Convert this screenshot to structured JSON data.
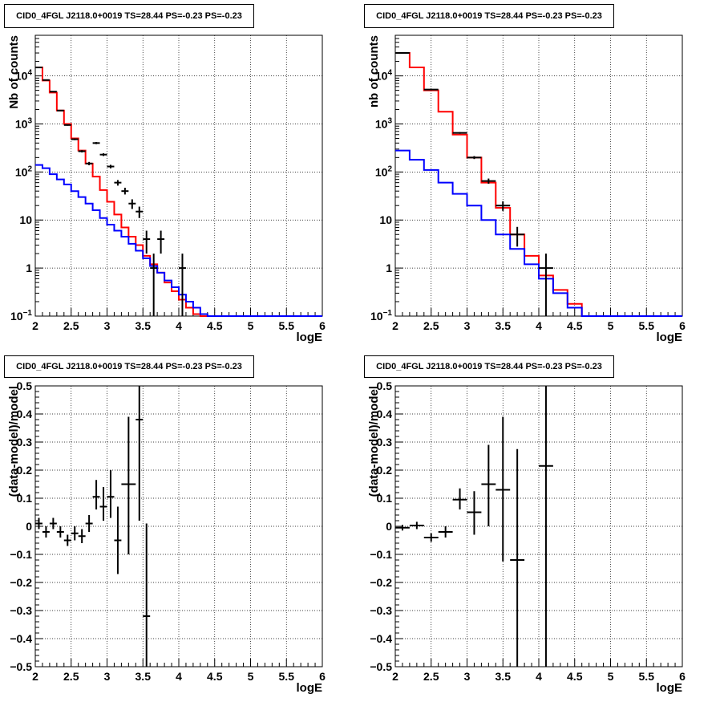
{
  "chart_data": [
    {
      "type": "line",
      "title": "CID0_4FGL J2118.0+0019 TS=28.44 PS=-0.23 PS=-0.23",
      "xlabel": "logE",
      "ylabel": "Nb of counts",
      "xlim": [
        2,
        6
      ],
      "ylim": [
        0.1,
        70000
      ],
      "yscale": "log",
      "grid": true,
      "x_ticks": [
        "2",
        "2.5",
        "3",
        "3.5",
        "4",
        "4.5",
        "5",
        "5.5",
        "6"
      ],
      "y_ticks": [
        "10^-1",
        "1",
        "10",
        "10^2",
        "10^3",
        "10^4"
      ],
      "bin_edges": [
        2.0,
        2.1,
        2.2,
        2.3,
        2.4,
        2.5,
        2.6,
        2.7,
        2.8,
        2.9,
        3.0,
        3.1,
        3.2,
        3.3,
        3.4,
        3.5,
        3.6,
        3.7,
        3.8,
        3.9,
        4.0,
        4.1,
        4.2,
        4.3,
        4.4,
        4.5,
        4.6,
        4.7,
        4.8,
        4.9,
        5.0,
        5.1,
        5.2,
        5.3,
        5.4,
        5.5,
        5.6,
        5.7,
        5.8,
        5.9,
        6.0
      ],
      "series": [
        {
          "name": "model (red)",
          "color": "#ff0000",
          "values": [
            15000,
            8000,
            4500,
            1900,
            1000,
            500,
            280,
            150,
            80,
            42,
            24,
            13,
            7,
            4.5,
            3,
            1.8,
            1.2,
            0.8,
            0.5,
            0.33,
            0.22,
            0.15,
            0.11,
            0.1,
            0.1,
            0.1,
            0.1,
            0.1,
            0.1,
            0.1,
            0.1,
            0.1,
            0.1,
            0.1,
            0.1,
            0.1,
            0.1,
            0.1,
            0.1,
            0.1
          ]
        },
        {
          "name": "component (blue)",
          "color": "#0000ff",
          "values": [
            140,
            120,
            90,
            70,
            55,
            40,
            30,
            22,
            16,
            11,
            8,
            6,
            4.5,
            3.2,
            2.3,
            1.6,
            1.1,
            0.8,
            0.55,
            0.4,
            0.28,
            0.2,
            0.15,
            0.11,
            0.1,
            0.1,
            0.1,
            0.1,
            0.1,
            0.1,
            0.1,
            0.1,
            0.1,
            0.1,
            0.1,
            0.1,
            0.1,
            0.1,
            0.1,
            0.1
          ]
        }
      ],
      "points": [
        {
          "x": 2.05,
          "y": 15000,
          "ylo": 14880,
          "yhi": 15120
        },
        {
          "x": 2.15,
          "y": 8200,
          "ylo": 8110,
          "yhi": 8290
        },
        {
          "x": 2.25,
          "y": 4700,
          "ylo": 4630,
          "yhi": 4770
        },
        {
          "x": 2.35,
          "y": 1900,
          "ylo": 1860,
          "yhi": 1940
        },
        {
          "x": 2.45,
          "y": 950,
          "ylo": 920,
          "yhi": 980
        },
        {
          "x": 2.55,
          "y": 480,
          "ylo": 460,
          "yhi": 500
        },
        {
          "x": 2.65,
          "y": 270,
          "ylo": 255,
          "yhi": 285
        },
        {
          "x": 2.75,
          "y": 150,
          "ylo": 138,
          "yhi": 162
        },
        {
          "x": 2.85,
          "y": 400,
          "ylo": 380,
          "yhi": 420
        },
        {
          "x": 2.95,
          "y": 230,
          "ylo": 215,
          "yhi": 245
        },
        {
          "x": 3.05,
          "y": 130,
          "ylo": 119,
          "yhi": 141
        },
        {
          "x": 3.15,
          "y": 60,
          "ylo": 52,
          "yhi": 68
        },
        {
          "x": 3.25,
          "y": 40,
          "ylo": 34,
          "yhi": 47
        },
        {
          "x": 3.35,
          "y": 22,
          "ylo": 17,
          "yhi": 27
        },
        {
          "x": 3.45,
          "y": 15,
          "ylo": 11,
          "yhi": 19
        },
        {
          "x": 3.55,
          "y": 4,
          "ylo": 2,
          "yhi": 6
        },
        {
          "x": 3.65,
          "y": 1,
          "ylo": 0.1,
          "yhi": 2
        },
        {
          "x": 3.75,
          "y": 4,
          "ylo": 2,
          "yhi": 6
        },
        {
          "x": 4.05,
          "y": 1,
          "ylo": 0.1,
          "yhi": 2
        }
      ]
    },
    {
      "type": "line",
      "title": "CID0_4FGL J2118.0+0019 TS=28.44 PS=-0.23 PS=-0.23",
      "xlabel": "logE",
      "ylabel": "nb of counts",
      "xlim": [
        2,
        6
      ],
      "ylim": [
        0.1,
        70000
      ],
      "yscale": "log",
      "grid": true,
      "x_ticks": [
        "2",
        "2.5",
        "3",
        "3.5",
        "4",
        "4.5",
        "5",
        "5.5",
        "6"
      ],
      "y_ticks": [
        "10^-1",
        "1",
        "10",
        "10^2",
        "10^3",
        "10^4"
      ],
      "bin_edges": [
        2.0,
        2.2,
        2.4,
        2.6,
        2.8,
        3.0,
        3.2,
        3.4,
        3.6,
        3.8,
        4.0,
        4.2,
        4.4,
        4.6,
        4.8,
        5.0,
        5.2,
        5.4,
        5.6,
        5.8,
        6.0
      ],
      "series": [
        {
          "name": "model (red)",
          "color": "#ff0000",
          "values": [
            30000,
            15000,
            5000,
            1800,
            600,
            200,
            60,
            18,
            5,
            1.8,
            0.7,
            0.35,
            0.18,
            0.1,
            0.1,
            0.1,
            0.1,
            0.1,
            0.1,
            0.1
          ]
        },
        {
          "name": "component (blue)",
          "color": "#0000ff",
          "values": [
            280,
            180,
            110,
            60,
            35,
            20,
            10,
            5,
            2.5,
            1.2,
            0.6,
            0.3,
            0.15,
            0.1,
            0.1,
            0.1,
            0.1,
            0.1,
            0.1,
            0.1
          ]
        }
      ],
      "points": [
        {
          "x": 2.1,
          "y": 30000,
          "ylo": 29830,
          "yhi": 30170
        },
        {
          "x": 2.5,
          "y": 5200,
          "ylo": 5130,
          "yhi": 5270
        },
        {
          "x": 2.9,
          "y": 650,
          "ylo": 625,
          "yhi": 675
        },
        {
          "x": 3.1,
          "y": 200,
          "ylo": 186,
          "yhi": 214
        },
        {
          "x": 3.3,
          "y": 65,
          "ylo": 57,
          "yhi": 73
        },
        {
          "x": 3.5,
          "y": 20,
          "ylo": 15.5,
          "yhi": 24.5
        },
        {
          "x": 3.7,
          "y": 5,
          "ylo": 2.8,
          "yhi": 7.2
        },
        {
          "x": 4.1,
          "y": 1,
          "ylo": 0.1,
          "yhi": 2
        }
      ]
    },
    {
      "type": "scatter",
      "title": "CID0_4FGL J2118.0+0019 TS=28.44 PS=-0.23 PS=-0.23",
      "xlabel": "logE",
      "ylabel": "(data-model)/model",
      "xlim": [
        2,
        6
      ],
      "ylim": [
        -0.5,
        0.5
      ],
      "grid": true,
      "x_ticks": [
        "2",
        "2.5",
        "3",
        "3.5",
        "4",
        "4.5",
        "5",
        "5.5",
        "6"
      ],
      "y_ticks": [
        "−0.5",
        "−0.4",
        "−0.3",
        "−0.2",
        "−0.1",
        "0",
        "0.1",
        "0.2",
        "0.3",
        "0.4",
        "0.5"
      ],
      "points": [
        {
          "x": 2.05,
          "y": 0.01,
          "ylo": -0.01,
          "yhi": 0.03,
          "xw": 0.05
        },
        {
          "x": 2.15,
          "y": -0.02,
          "ylo": -0.04,
          "yhi": 0.0,
          "xw": 0.05
        },
        {
          "x": 2.25,
          "y": 0.01,
          "ylo": -0.01,
          "yhi": 0.03,
          "xw": 0.05
        },
        {
          "x": 2.35,
          "y": -0.02,
          "ylo": -0.04,
          "yhi": 0.0,
          "xw": 0.05
        },
        {
          "x": 2.45,
          "y": -0.05,
          "ylo": -0.07,
          "yhi": -0.03,
          "xw": 0.05
        },
        {
          "x": 2.55,
          "y": -0.025,
          "ylo": -0.05,
          "yhi": 0.0,
          "xw": 0.05
        },
        {
          "x": 2.65,
          "y": -0.035,
          "ylo": -0.06,
          "yhi": -0.01,
          "xw": 0.05
        },
        {
          "x": 2.75,
          "y": 0.01,
          "ylo": -0.02,
          "yhi": 0.04,
          "xw": 0.05
        },
        {
          "x": 2.85,
          "y": 0.105,
          "ylo": 0.06,
          "yhi": 0.165,
          "xw": 0.05
        },
        {
          "x": 2.95,
          "y": 0.07,
          "ylo": 0.02,
          "yhi": 0.14,
          "xw": 0.05
        },
        {
          "x": 3.05,
          "y": 0.105,
          "ylo": 0.03,
          "yhi": 0.2,
          "xw": 0.05
        },
        {
          "x": 3.15,
          "y": -0.05,
          "ylo": -0.17,
          "yhi": 0.07,
          "xw": 0.05
        },
        {
          "x": 3.3,
          "y": 0.15,
          "ylo": -0.1,
          "yhi": 0.39,
          "xw": 0.1
        },
        {
          "x": 3.45,
          "y": 0.38,
          "ylo": 0.02,
          "yhi": 0.5,
          "xw": 0.05
        },
        {
          "x": 3.55,
          "y": -0.32,
          "ylo": -0.5,
          "yhi": 0.01,
          "xw": 0.05
        }
      ]
    },
    {
      "type": "scatter",
      "title": "CID0_4FGL J2118.0+0019 TS=28.44 PS=-0.23 PS=-0.23",
      "xlabel": "logE",
      "ylabel": "(data-model)/model",
      "xlim": [
        2,
        6
      ],
      "ylim": [
        -0.5,
        0.5
      ],
      "grid": true,
      "x_ticks": [
        "2",
        "2.5",
        "3",
        "3.5",
        "4",
        "4.5",
        "5",
        "5.5",
        "6"
      ],
      "y_ticks": [
        "−0.5",
        "−0.4",
        "−0.3",
        "−0.2",
        "−0.1",
        "0",
        "0.1",
        "0.2",
        "0.3",
        "0.4",
        "0.5"
      ],
      "points": [
        {
          "x": 2.1,
          "y": -0.005,
          "ylo": -0.015,
          "yhi": 0.005,
          "xw": 0.1
        },
        {
          "x": 2.3,
          "y": 0.003,
          "ylo": -0.01,
          "yhi": 0.016,
          "xw": 0.1
        },
        {
          "x": 2.5,
          "y": -0.04,
          "ylo": -0.055,
          "yhi": -0.025,
          "xw": 0.1
        },
        {
          "x": 2.7,
          "y": -0.02,
          "ylo": -0.04,
          "yhi": 0.0,
          "xw": 0.1
        },
        {
          "x": 2.9,
          "y": 0.095,
          "ylo": 0.06,
          "yhi": 0.135,
          "xw": 0.1
        },
        {
          "x": 3.1,
          "y": 0.05,
          "ylo": -0.03,
          "yhi": 0.125,
          "xw": 0.1
        },
        {
          "x": 3.3,
          "y": 0.15,
          "ylo": 0.0,
          "yhi": 0.29,
          "xw": 0.1
        },
        {
          "x": 3.5,
          "y": 0.13,
          "ylo": -0.125,
          "yhi": 0.39,
          "xw": 0.1
        },
        {
          "x": 3.7,
          "y": -0.12,
          "ylo": -0.5,
          "yhi": 0.275,
          "xw": 0.1
        },
        {
          "x": 4.1,
          "y": 0.215,
          "ylo": -0.5,
          "yhi": 0.5,
          "xw": 0.1
        }
      ]
    }
  ]
}
